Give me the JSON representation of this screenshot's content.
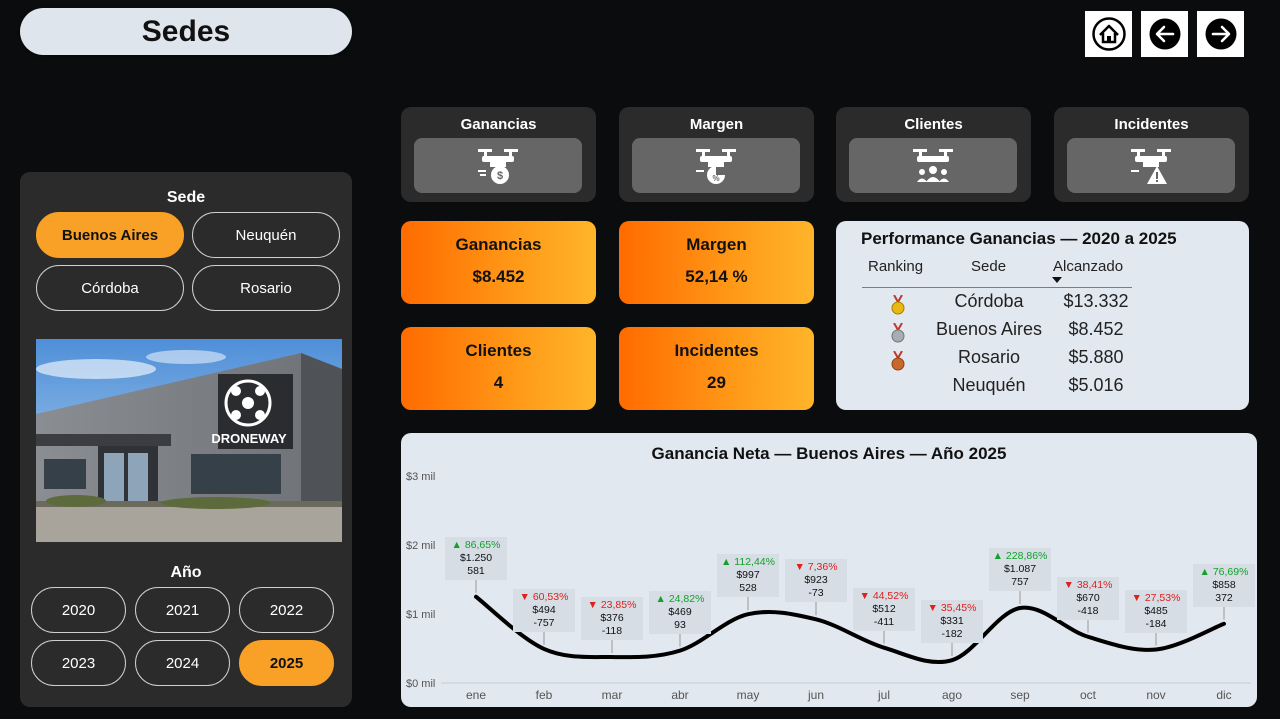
{
  "header": {
    "title": "Sedes"
  },
  "nav": [
    "home-icon",
    "arrow-left-icon",
    "arrow-right-icon"
  ],
  "filters": {
    "sede_label": "Sede",
    "sedes": [
      "Buenos Aires",
      "Neuquén",
      "Córdoba",
      "Rosario"
    ],
    "selected_sede": "Buenos Aires",
    "anio_label": "Año",
    "years": [
      "2020",
      "2021",
      "2022",
      "2023",
      "2024",
      "2025"
    ],
    "selected_year": "2025",
    "building_sign": "DRONEWAY"
  },
  "icon_cards": [
    {
      "label": "Ganancias",
      "icon": "drone-dollar-icon"
    },
    {
      "label": "Margen",
      "icon": "drone-percent-icon"
    },
    {
      "label": "Clientes",
      "icon": "drone-clients-icon"
    },
    {
      "label": "Incidentes",
      "icon": "drone-warning-icon"
    }
  ],
  "kpis": [
    {
      "label": "Ganancias",
      "value": "$8.452"
    },
    {
      "label": "Margen",
      "value": "52,14 %"
    },
    {
      "label": "Clientes",
      "value": "4"
    },
    {
      "label": "Incidentes",
      "value": "29"
    }
  ],
  "performance": {
    "title": "Performance Ganancias — 2020 a 2025",
    "headers": [
      "Ranking",
      "Sede",
      "Alcanzado"
    ],
    "rows": [
      {
        "medal": "gold-medal-icon",
        "sede": "Córdoba",
        "value": "$13.332"
      },
      {
        "medal": "silver-medal-icon",
        "sede": "Buenos Aires",
        "value": "$8.452"
      },
      {
        "medal": "bronze-medal-icon",
        "sede": "Rosario",
        "value": "$5.880"
      },
      {
        "medal": "",
        "sede": "Neuquén",
        "value": "$5.016"
      }
    ]
  },
  "chart_data": {
    "type": "line",
    "title": "Ganancia Neta — Buenos Aires — Año 2025",
    "categories": [
      "ene",
      "feb",
      "mar",
      "abr",
      "may",
      "jun",
      "jul",
      "ago",
      "sep",
      "oct",
      "nov",
      "dic"
    ],
    "values": [
      1250,
      494,
      376,
      469,
      997,
      923,
      512,
      331,
      1087,
      670,
      485,
      858
    ],
    "value_labels": [
      "$1.250",
      "$494",
      "$376",
      "$469",
      "$997",
      "$923",
      "$512",
      "$331",
      "$1.087",
      "$670",
      "$485",
      "$858"
    ],
    "change_pct": [
      "86,65%",
      "60,53%",
      "23,85%",
      "24,82%",
      "112,44%",
      "7,36%",
      "44,52%",
      "35,45%",
      "228,86%",
      "38,41%",
      "27,53%",
      "76,69%"
    ],
    "change_dir": [
      "up",
      "down",
      "down",
      "up",
      "up",
      "down",
      "down",
      "down",
      "up",
      "down",
      "down",
      "up"
    ],
    "delta": [
      "581",
      "-757",
      "-118",
      "93",
      "528",
      "-73",
      "-411",
      "-182",
      "757",
      "-418",
      "-184",
      "372"
    ],
    "y_ticks": [
      "$0 mil",
      "$1 mil",
      "$2 mil",
      "$3 mil"
    ],
    "ylim": [
      0,
      3000
    ],
    "colors": {
      "line": "#000000",
      "up": "#12a12a",
      "down": "#e0201b"
    }
  }
}
